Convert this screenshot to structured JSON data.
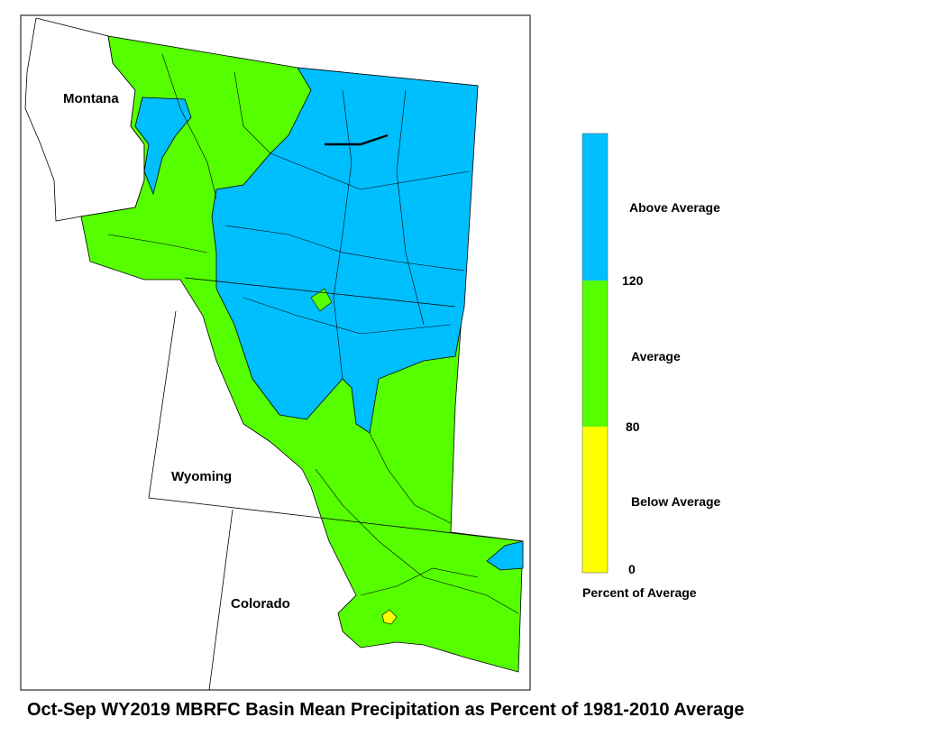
{
  "map": {
    "title": "Oct-Sep WY2019 MBRFC Basin Mean Precipitation as Percent of 1981-2010 Average",
    "state_labels": [
      "Montana",
      "Wyoming",
      "Colorado"
    ]
  },
  "legend": {
    "title": "Percent of Average",
    "classes": [
      {
        "label": "Above Average",
        "color": "#00bfff"
      },
      {
        "label": "Average",
        "color": "#55ff00"
      },
      {
        "label": "Below Average",
        "color": "#ffff00"
      }
    ],
    "breaks": [
      120,
      80,
      0
    ]
  }
}
